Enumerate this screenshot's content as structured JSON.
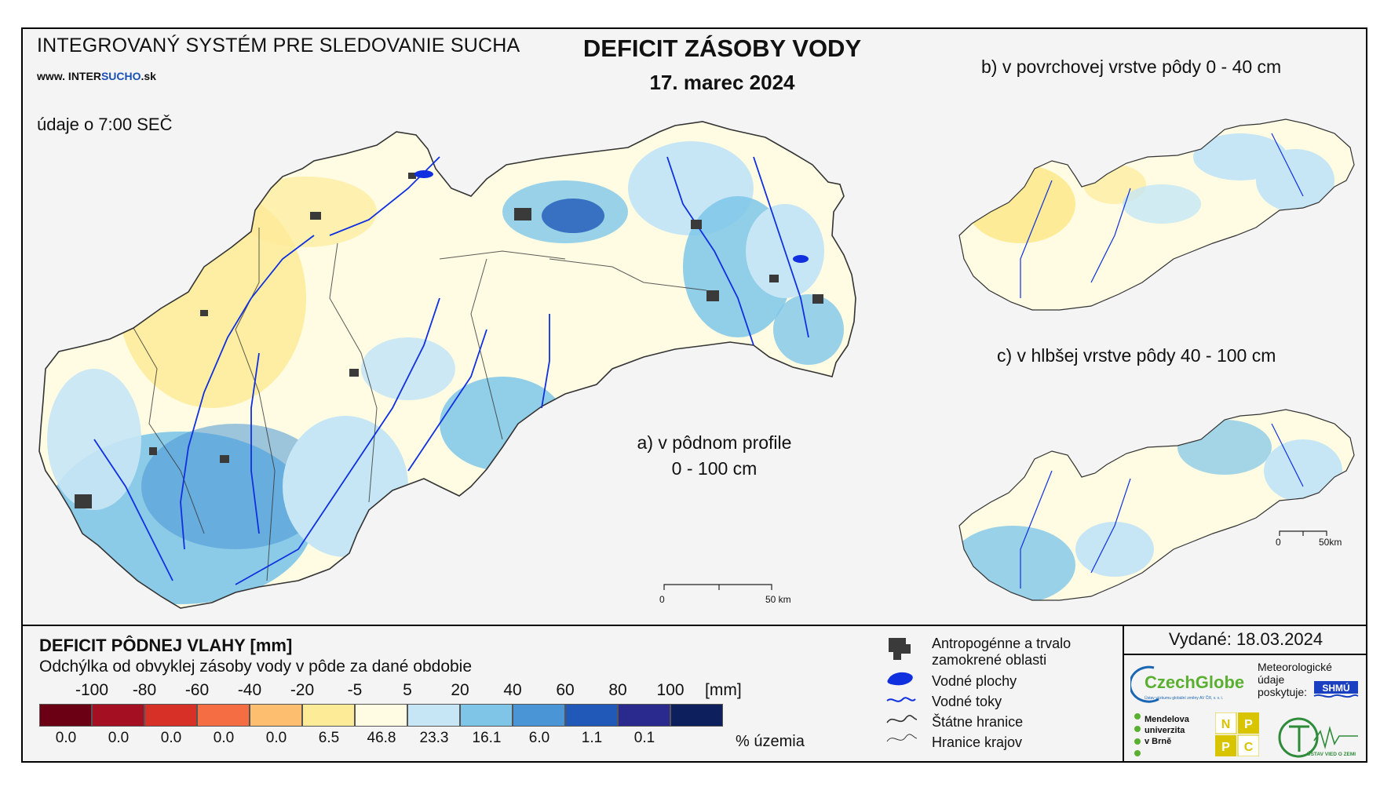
{
  "header": {
    "system_title": "INTEGROVANÝ SYSTÉM PRE SLEDOVANIE SUCHA",
    "website_prefix": "www. INTER",
    "website_accent": "SUCHO",
    "website_suffix": ".sk",
    "data_time": "údaje o 7:00 SEČ",
    "main_title": "DEFICIT ZÁSOBY VODY",
    "date": "17. marec 2024"
  },
  "maps": {
    "a_label_line1": "a) v pôdnom profile",
    "a_label_line2": "0 - 100 cm",
    "b_label": "b) v povrchovej vrstve pôdy 0 - 40 cm",
    "c_label": "c) v hlbšej vrstve pôdy 40 - 100 cm",
    "scale_main_zero": "0",
    "scale_main_end": "50 km",
    "scale_small_zero": "0",
    "scale_small_end": "50km"
  },
  "legend": {
    "title": "DEFICIT PÔDNEJ VLAHY [mm]",
    "subtitle": "Odchýlka od obvyklej zásoby vody v pôde za dané obdobie",
    "unit": "[mm]",
    "pct_label": "% územia",
    "ticks": [
      "-100",
      "-80",
      "-60",
      "-40",
      "-20",
      "-5",
      "5",
      "20",
      "40",
      "60",
      "80",
      "100"
    ],
    "classes": [
      {
        "color": "#6b0015",
        "pct": "0.0"
      },
      {
        "color": "#a50f22",
        "pct": "0.0"
      },
      {
        "color": "#d73027",
        "pct": "0.0"
      },
      {
        "color": "#f46d43",
        "pct": "0.0"
      },
      {
        "color": "#fdbf6f",
        "pct": "0.0"
      },
      {
        "color": "#fdeb98",
        "pct": "6.5"
      },
      {
        "color": "#fffce3",
        "pct": "46.8"
      },
      {
        "color": "#c6e6f5",
        "pct": "23.3"
      },
      {
        "color": "#7ec5e8",
        "pct": "16.1"
      },
      {
        "color": "#4a95d6",
        "pct": "6.0"
      },
      {
        "color": "#2159b8",
        "pct": "1.1"
      },
      {
        "color": "#2a2a8e",
        "pct": "0.1"
      },
      {
        "color": "#0d1f5c",
        "pct": ""
      }
    ]
  },
  "symbols": {
    "urban": "Antropogénne a trvalo zamokrené oblasti",
    "water_bodies": "Vodné plochy",
    "rivers": "Vodné toky",
    "state_border": "Štátne hranice",
    "region_border": "Hranice krajov"
  },
  "footer": {
    "issued": "Vydané: 18.03.2024",
    "czechglobe": "CzechGlobe",
    "czechglobe_sub": "Ústav výzkumu globální změny AV ČR, v. v. i.",
    "meteo_line1": "Meteorologické",
    "meteo_line2": "údaje",
    "meteo_line3": "poskytuje:",
    "shmu": "SHMÚ",
    "mendel_line1": "Mendelova",
    "mendel_line2": "univerzita",
    "mendel_line3": "v Brně",
    "nppc_n": "N",
    "nppc_p1": "P",
    "nppc_p2": "P",
    "nppc_c": "C",
    "uvz": "ÚSTAV VIED O ZEMI"
  },
  "colors": {
    "river": "#1030e0",
    "urban": "#3a3a3a",
    "czechglobe_blue": "#1a66b3",
    "czechglobe_green": "#5bb031",
    "nppc_yellow": "#d9c400",
    "uvz_green": "#2e8b3a"
  }
}
